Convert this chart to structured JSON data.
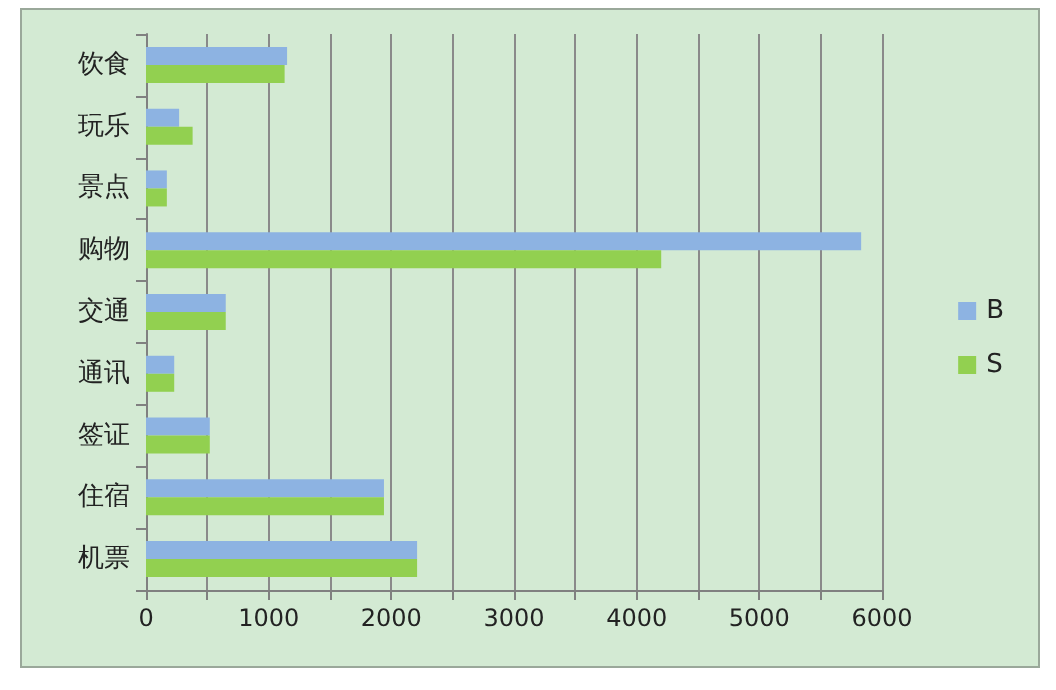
{
  "chart_data": {
    "type": "bar",
    "orientation": "horizontal",
    "categories": [
      "饮食",
      "玩乐",
      "景点",
      "购物",
      "交通",
      "通讯",
      "签证",
      "住宿",
      "机票"
    ],
    "series": [
      {
        "name": "B",
        "color": "#8db3e2",
        "values": [
          1150,
          270,
          170,
          5830,
          650,
          230,
          520,
          1940,
          2210
        ]
      },
      {
        "name": "S",
        "color": "#92d050",
        "values": [
          1130,
          380,
          170,
          4200,
          650,
          230,
          520,
          1940,
          2210
        ]
      }
    ],
    "xlim": [
      0,
      6000
    ],
    "xticks": [
      0,
      {
        "value": 500,
        "label": null
      },
      1000,
      {
        "value": 1500,
        "label": null
      },
      2000,
      {
        "value": 2500,
        "label": null
      },
      3000,
      {
        "value": 3500,
        "label": null
      },
      4000,
      {
        "value": 4500,
        "label": null
      },
      5000,
      {
        "value": 5500,
        "label": null
      },
      6000
    ],
    "grid": "x",
    "legend": "right"
  }
}
